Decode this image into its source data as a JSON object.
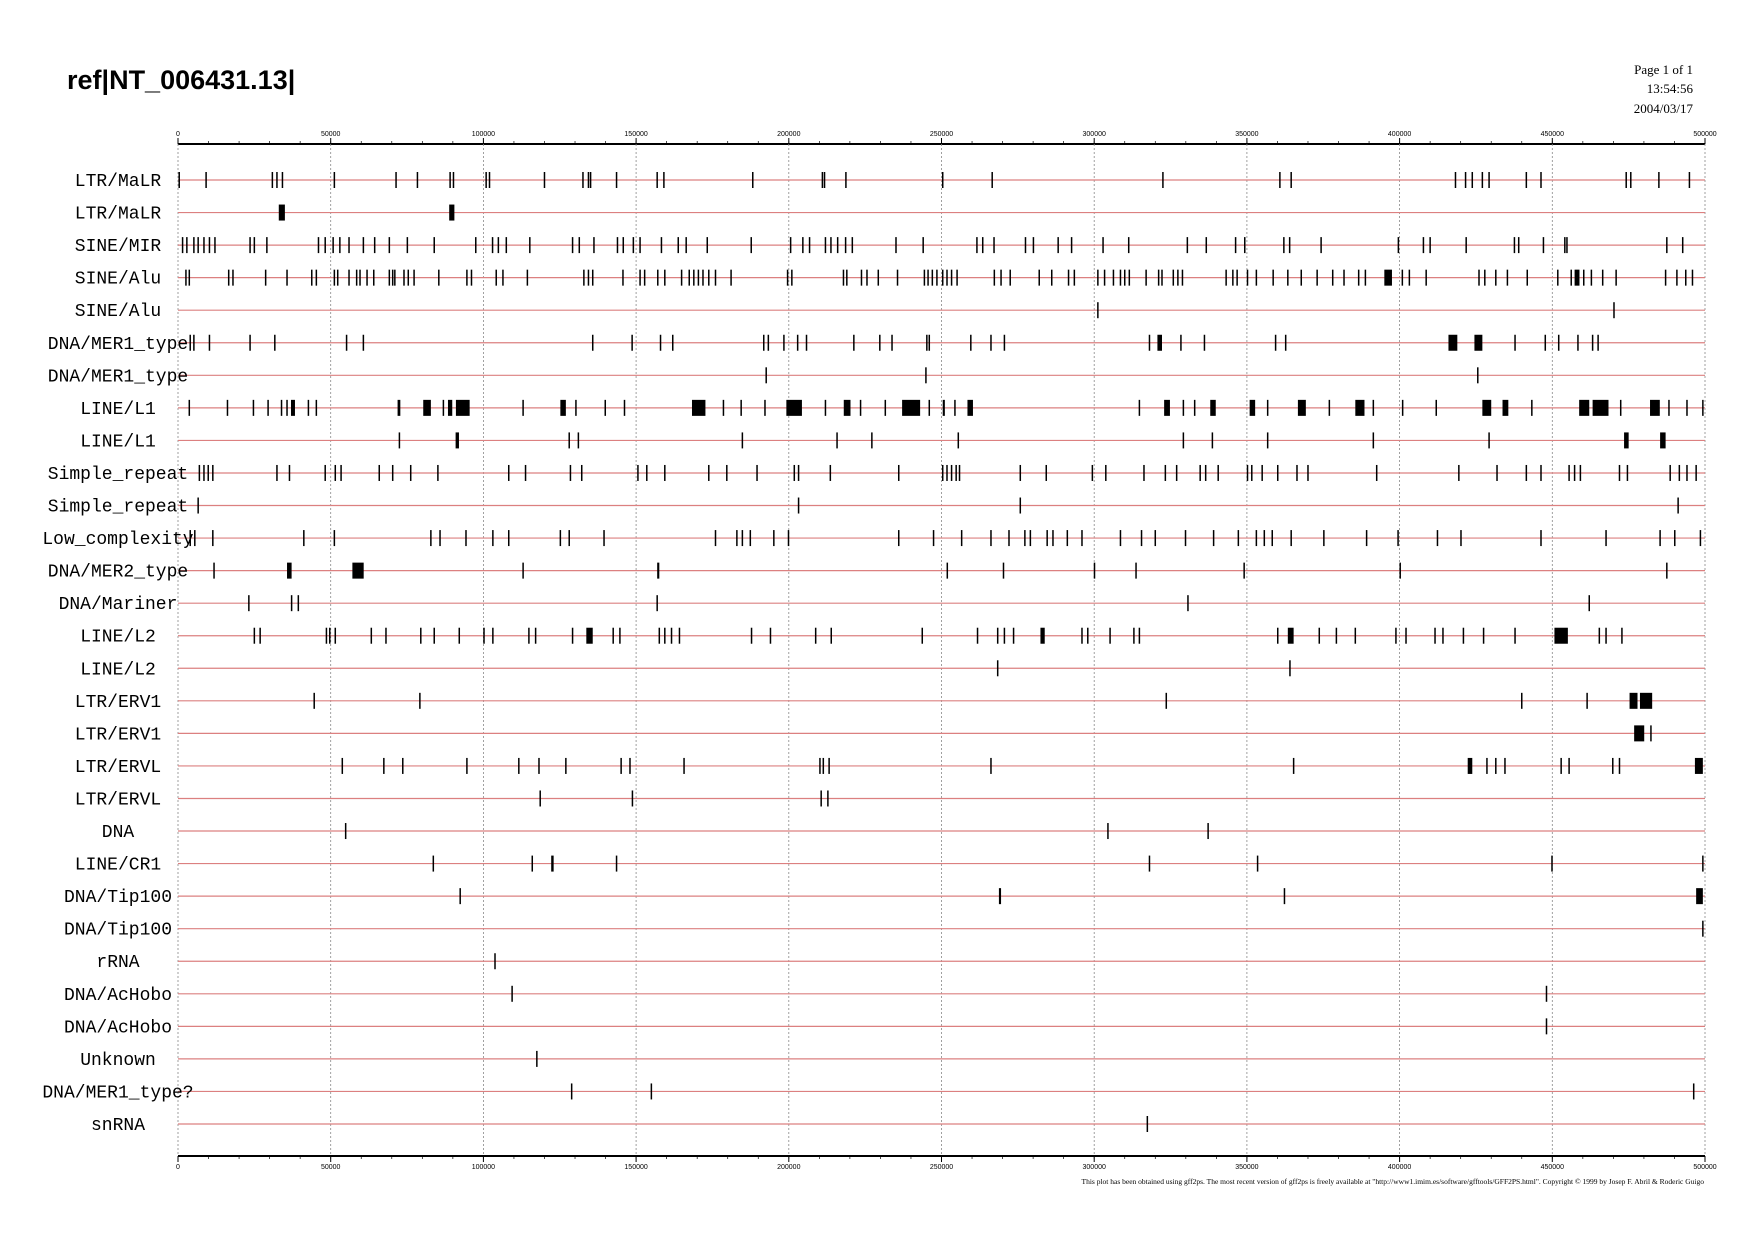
{
  "chart_data": {
    "type": "tracks",
    "title": "ref|NT_006431.13|",
    "page": "Page 1 of 1",
    "time": "13:54:56",
    "date": "2004/03/17",
    "footer": "This plot has been obtained using gff2ps. The most recent version of gff2ps is freely available at \"http://www1.imim.es/software/gfftools/GFF2PS.html\". Copyright © 1999 by Josep F. Abril & Roderic Guigo",
    "xlim": [
      0,
      500000
    ],
    "xticks": [
      0,
      50000,
      100000,
      150000,
      200000,
      250000,
      300000,
      350000,
      400000,
      450000,
      500000
    ],
    "xminorticks": [
      0,
      10000,
      20000,
      30000,
      40000,
      50000,
      60000,
      70000,
      80000,
      90000,
      100000,
      110000,
      120000,
      130000,
      140000,
      150000,
      160000,
      170000,
      180000,
      190000,
      200000,
      210000,
      220000,
      230000,
      240000,
      250000,
      260000,
      270000,
      280000,
      290000,
      300000,
      310000,
      320000,
      330000,
      340000,
      350000,
      360000,
      370000,
      380000,
      390000,
      400000,
      410000,
      420000,
      430000,
      440000,
      450000,
      460000,
      470000,
      480000,
      490000,
      500000
    ],
    "grid": true,
    "line_color": "#dc8080",
    "feature_color": "#000000",
    "tracks": [
      {
        "name": "LTR/MaLR",
        "features": [
          400,
          9200,
          30900,
          32400,
          34200,
          51200,
          71400,
          78400,
          89100,
          90200,
          100900,
          102000,
          120000,
          132600,
          134400,
          135100,
          143600,
          156900,
          159100,
          188200,
          211000,
          211700,
          218700,
          250400,
          266600,
          322500,
          360800,
          364500,
          418300,
          421600,
          423800,
          427100,
          429300,
          441500,
          446300,
          474200,
          475700,
          484900,
          494900
        ]
      },
      {
        "name": "LTR/MaLR",
        "features": [
          [
            33000,
            35000
          ],
          [
            88800,
            90500
          ]
        ]
      },
      {
        "name": "SINE/MIR",
        "features": [
          1500,
          2900,
          5200,
          6600,
          8500,
          10300,
          12100,
          23600,
          25000,
          29100,
          46000,
          48200,
          50800,
          53000,
          56000,
          60700,
          64400,
          69200,
          75100,
          83900,
          97500,
          103000,
          104900,
          107500,
          115200,
          129200,
          131400,
          136200,
          143900,
          145800,
          149100,
          151300,
          158300,
          163800,
          166400,
          173300,
          187700,
          200600,
          204600,
          206800,
          212000,
          213800,
          216000,
          218600,
          220800,
          235100,
          244000,
          261600,
          263500,
          267200,
          277500,
          280100,
          288200,
          292600,
          302900,
          311300,
          330500,
          336700,
          346300,
          349300,
          362100,
          364000,
          374300,
          399600,
          407800,
          410000,
          421800,
          437600,
          439000,
          447100,
          454100,
          454800,
          487500,
          492700
        ]
      },
      {
        "name": "SINE/Alu",
        "features": [
          2600,
          3700,
          16600,
          18000,
          28700,
          35700,
          43800,
          45300,
          51200,
          52300,
          56000,
          58500,
          59600,
          61900,
          64100,
          69200,
          70300,
          71000,
          74000,
          75400,
          77300,
          85400,
          94600,
          96100,
          104200,
          106400,
          114400,
          132900,
          134400,
          135800,
          145700,
          151300,
          152800,
          157100,
          159400,
          164900,
          167400,
          168900,
          170400,
          171900,
          173800,
          176000,
          181100,
          199600,
          201000,
          217900,
          219000,
          223800,
          225600,
          229300,
          235600,
          244400,
          245600,
          247000,
          248500,
          250400,
          251800,
          253300,
          255100,
          267300,
          269500,
          272500,
          282000,
          286100,
          291600,
          293500,
          301200,
          303400,
          306300,
          308600,
          310000,
          311500,
          317000,
          321100,
          322200,
          325900,
          327400,
          328900,
          343200,
          345400,
          346800,
          350200,
          353100,
          358600,
          363400,
          367800,
          373000,
          378100,
          381800,
          386600,
          388800,
          [
            395000,
            397500
          ],
          400900,
          403200,
          408700,
          426000,
          427900,
          431500,
          435300,
          441800,
          451800,
          456200,
          [
            457300,
            458900
          ],
          460300,
          462800,
          466500,
          470900,
          487100,
          490800,
          493700,
          495900
        ]
      },
      {
        "name": "SINE/Alu",
        "features": [
          301200,
          470200
        ]
      },
      {
        "name": "DNA/MER1_type",
        "features": [
          4000,
          5200,
          10300,
          23600,
          31700,
          55200,
          60700,
          135800,
          148700,
          158000,
          162000,
          191800,
          193300,
          198400,
          202900,
          205800,
          221300,
          229800,
          233800,
          245200,
          246000,
          259600,
          266200,
          270600,
          318100,
          [
            320700,
            322200
          ],
          328400,
          336100,
          359400,
          362700,
          [
            416000,
            418900
          ],
          [
            424500,
            427100
          ],
          437800,
          447700,
          452100,
          458400,
          463200,
          465000
        ]
      },
      {
        "name": "DNA/MER1_type",
        "features": [
          192600,
          244900,
          425600
        ]
      },
      {
        "name": "LINE/L1",
        "features": [
          3700,
          16200,
          24700,
          29500,
          33900,
          35700,
          [
            37000,
            38300
          ],
          42700,
          45300,
          [
            71900,
            72800
          ],
          [
            80300,
            82800
          ],
          86900,
          [
            88400,
            89800
          ],
          [
            91000,
            95500
          ],
          113000,
          [
            125200,
            127000
          ],
          130300,
          139900,
          146200,
          [
            168300,
            172700
          ],
          178600,
          184400,
          192200,
          [
            199200,
            204300
          ],
          212000,
          [
            218000,
            220200
          ],
          223500,
          231600,
          [
            237100,
            243000
          ],
          246000,
          [
            250400,
            251100
          ],
          254400,
          [
            258500,
            260300
          ],
          314800,
          [
            322900,
            324800
          ],
          329200,
          332900,
          [
            338000,
            339800
          ],
          [
            350900,
            352700
          ],
          356800,
          [
            366700,
            369300
          ],
          377000,
          [
            385500,
            388500
          ],
          391400,
          401000,
          412000,
          [
            427100,
            430000
          ],
          [
            433700,
            435600
          ],
          443300,
          [
            458800,
            462100
          ],
          [
            463200,
            468400
          ],
          472400,
          [
            482000,
            485200
          ],
          488200,
          494100,
          499300
        ]
      },
      {
        "name": "LINE/L1",
        "features": [
          72500,
          [
            90900,
            92000
          ],
          128100,
          131100,
          184800,
          215800,
          227200,
          255500,
          329200,
          338700,
          356800,
          391400,
          429300,
          [
            473500,
            475000
          ],
          [
            485300,
            487100
          ]
        ]
      },
      {
        "name": "Simple_repeat",
        "features": [
          7000,
          8500,
          9900,
          11400,
          32400,
          36500,
          48200,
          51500,
          53400,
          65900,
          70300,
          76200,
          85100,
          108300,
          113800,
          128500,
          132200,
          150600,
          153500,
          159400,
          173800,
          179700,
          189600,
          201800,
          203200,
          213600,
          236000,
          250400,
          251800,
          253300,
          254800,
          255900,
          275800,
          284300,
          299400,
          303800,
          316300,
          323300,
          327000,
          334700,
          336500,
          340600,
          350200,
          351600,
          355000,
          360100,
          366400,
          370000,
          392500,
          419400,
          431900,
          441500,
          446300,
          455500,
          457300,
          459200,
          472000,
          474600,
          488600,
          491600,
          494100,
          497100
        ]
      },
      {
        "name": "Simple_repeat",
        "features": [
          6600,
          203200,
          275800,
          491200
        ]
      },
      {
        "name": "Low_complexity",
        "features": [
          4000,
          5500,
          11400,
          41200,
          51200,
          82800,
          85800,
          94300,
          103100,
          108300,
          125200,
          128100,
          139500,
          176000,
          183000,
          184800,
          187400,
          195100,
          199900,
          236000,
          247400,
          256600,
          266200,
          272100,
          277300,
          279100,
          284600,
          286500,
          291200,
          296000,
          308600,
          315500,
          320000,
          329900,
          339100,
          347200,
          353100,
          355700,
          358300,
          364500,
          375200,
          389200,
          399500,
          412400,
          420100,
          446300,
          467600,
          485300,
          490100,
          498500
        ]
      },
      {
        "name": "DNA/MER2_type",
        "features": [
          11800,
          [
            35700,
            37200
          ],
          [
            57100,
            60800
          ],
          113000,
          [
            156900,
            157600
          ],
          251900,
          270300,
          300100,
          313700,
          349100,
          400200,
          487500
        ]
      },
      {
        "name": "DNA/Mariner",
        "features": [
          23200,
          37200,
          39400,
          156900,
          330700,
          462100
        ]
      },
      {
        "name": "LINE/L2",
        "features": [
          25000,
          26900,
          48600,
          49700,
          51500,
          63300,
          68100,
          79500,
          83900,
          92100,
          100200,
          103100,
          114900,
          117100,
          129200,
          [
            133700,
            135800
          ],
          142500,
          144700,
          157600,
          159400,
          161600,
          164200,
          187800,
          194000,
          208800,
          213900,
          243700,
          261800,
          268400,
          270600,
          273600,
          [
            282400,
            283800
          ],
          296000,
          297900,
          305200,
          313000,
          314800,
          360100,
          [
            363400,
            365300
          ],
          373700,
          379300,
          385500,
          398800,
          402100,
          411600,
          414200,
          420900,
          427500,
          437800,
          [
            450700,
            455100
          ],
          465400,
          467600,
          472800
        ]
      },
      {
        "name": "LINE/L2",
        "features": [
          268400,
          364100
        ]
      },
      {
        "name": "LTR/ERV1",
        "features": [
          44600,
          79200,
          323600,
          440000,
          461400,
          [
            475300,
            477900
          ],
          [
            478700,
            482700
          ]
        ]
      },
      {
        "name": "LTR/ERV1",
        "features": [
          [
            476800,
            480100
          ],
          482300
        ]
      },
      {
        "name": "LTR/ERVL",
        "features": [
          53800,
          67400,
          73600,
          94600,
          111600,
          118200,
          127000,
          145100,
          148000,
          165700,
          210200,
          211300,
          213200,
          266200,
          365300,
          [
            422300,
            423800
          ],
          428600,
          431500,
          434500,
          452900,
          455500,
          469800,
          472000,
          [
            496700,
            499300
          ]
        ]
      },
      {
        "name": "LTR/ERVL",
        "features": [
          118600,
          148800,
          210600,
          212800
        ]
      },
      {
        "name": "DNA",
        "features": [
          54900,
          304500,
          337300
        ]
      },
      {
        "name": "LINE/CR1",
        "features": [
          83600,
          116000,
          [
            122200,
            123000
          ],
          143600,
          318100,
          353500,
          449900,
          499300
        ]
      },
      {
        "name": "DNA/Tip100",
        "features": [
          92400,
          [
            268800,
            269500
          ],
          362300,
          [
            497100,
            499300
          ]
        ]
      },
      {
        "name": "DNA/Tip100",
        "features": [
          499300
        ]
      },
      {
        "name": "rRNA",
        "features": [
          103800
        ]
      },
      {
        "name": "DNA/AcHobo",
        "features": [
          109400,
          448100
        ]
      },
      {
        "name": "DNA/AcHobo",
        "features": [
          448100
        ]
      },
      {
        "name": "Unknown",
        "features": [
          117500
        ]
      },
      {
        "name": "DNA/MER1_type?",
        "features": [
          128900,
          155000,
          496300
        ]
      },
      {
        "name": "snRNA",
        "features": [
          317400
        ]
      }
    ]
  }
}
